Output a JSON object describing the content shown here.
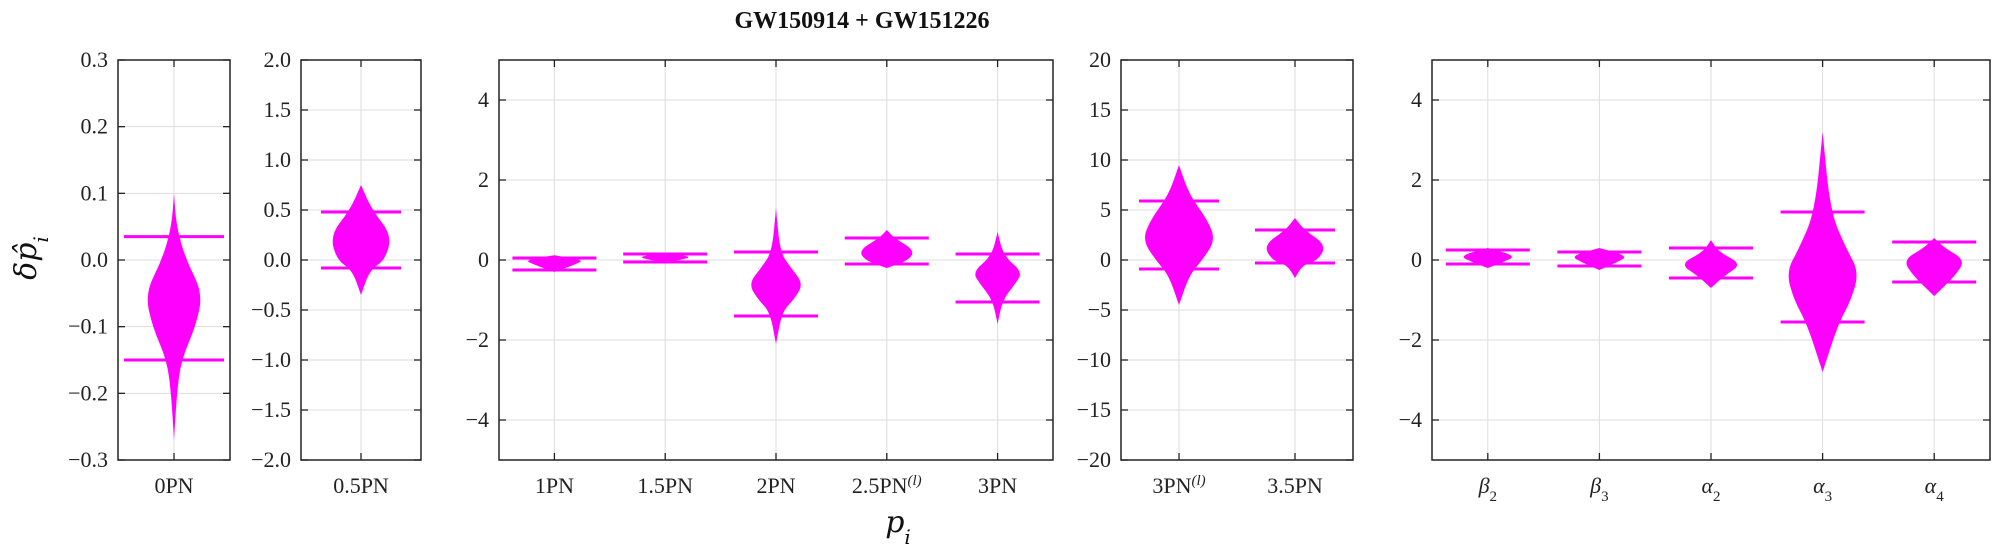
{
  "figure": {
    "title": "GW150914 + GW151226",
    "ylabel": "δp̂",
    "ylabel_sub": "i",
    "xlabel": "p",
    "xlabel_sub": "i",
    "violin_color": "#ff00ff"
  },
  "chart_data": [
    {
      "type": "violin",
      "ylim": [
        -0.3,
        0.3
      ],
      "yticks": [
        "0.3",
        "0.2",
        "0.1",
        "0.0",
        "−0.1",
        "−0.2",
        "−0.3"
      ],
      "ytick_values": [
        0.3,
        0.2,
        0.1,
        0.0,
        -0.1,
        -0.2,
        -0.3
      ],
      "y_axis_side": "left",
      "grid": true,
      "categories": [
        {
          "label": "0PN",
          "tails": [
            -0.27,
            0.14
          ],
          "shape": [
            [
              0.1,
              0.0
            ],
            [
              0.05,
              0.05
            ],
            [
              0.0,
              0.25
            ],
            [
              -0.05,
              0.6
            ],
            [
              -0.1,
              0.45
            ],
            [
              -0.15,
              0.15
            ],
            [
              -0.2,
              0.06
            ],
            [
              -0.27,
              0.0
            ]
          ],
          "lower": -0.15,
          "upper": 0.035
        }
      ]
    },
    {
      "type": "violin",
      "ylim": [
        -2.0,
        2.0
      ],
      "yticks": [
        "2.0",
        "1.5",
        "1.0",
        "0.5",
        "0.0",
        "−0.5",
        "−1.0",
        "−1.5",
        "−2.0"
      ],
      "ytick_values": [
        2.0,
        1.5,
        1.0,
        0.5,
        0.0,
        -0.5,
        -1.0,
        -1.5,
        -2.0
      ],
      "y_axis_side": "left",
      "grid": true,
      "categories": [
        {
          "label": "0.5PN",
          "shape": [
            [
              0.75,
              0.0
            ],
            [
              0.5,
              0.25
            ],
            [
              0.25,
              0.7
            ],
            [
              0.0,
              0.55
            ],
            [
              -0.1,
              0.2
            ],
            [
              -0.35,
              0.0
            ]
          ],
          "lower": -0.08,
          "upper": 0.48
        }
      ]
    },
    {
      "type": "violin",
      "ylim": [
        -5,
        5
      ],
      "yticks": [
        "4",
        "2",
        "0",
        "−2",
        "−4"
      ],
      "ytick_values": [
        4,
        2,
        0,
        -2,
        -4
      ],
      "y_axis_side": "left",
      "grid": true,
      "categories": [
        {
          "label": "1PN",
          "shape": [
            [
              0.12,
              0.0
            ],
            [
              0.0,
              0.6
            ],
            [
              -0.12,
              0.4
            ],
            [
              -0.3,
              0.0
            ]
          ],
          "lower": -0.25,
          "upper": 0.05
        },
        {
          "label": "1.5PN",
          "shape": [
            [
              0.18,
              0.0
            ],
            [
              0.08,
              0.55
            ],
            [
              0.0,
              0.3
            ],
            [
              -0.05,
              0.0
            ]
          ],
          "lower": -0.05,
          "upper": 0.15
        },
        {
          "label": "2PN",
          "shape": [
            [
              1.3,
              0.0
            ],
            [
              0.2,
              0.08
            ],
            [
              -0.2,
              0.3
            ],
            [
              -0.6,
              0.55
            ],
            [
              -1.0,
              0.35
            ],
            [
              -1.3,
              0.12
            ],
            [
              -2.1,
              0.0
            ]
          ],
          "lower": -1.4,
          "upper": 0.2
        },
        {
          "label": "2.5PN",
          "label_sup": "(l)",
          "shape": [
            [
              0.75,
              0.0
            ],
            [
              0.55,
              0.15
            ],
            [
              0.25,
              0.55
            ],
            [
              0.0,
              0.45
            ],
            [
              -0.2,
              0.0
            ]
          ],
          "lower": -0.1,
          "upper": 0.55
        },
        {
          "label": "3PN",
          "shape": [
            [
              0.7,
              0.0
            ],
            [
              0.1,
              0.12
            ],
            [
              -0.3,
              0.5
            ],
            [
              -0.6,
              0.35
            ],
            [
              -1.0,
              0.1
            ],
            [
              -1.6,
              0.0
            ]
          ],
          "lower": -1.05,
          "upper": 0.15
        }
      ]
    },
    {
      "type": "violin",
      "ylim": [
        -20,
        20
      ],
      "yticks": [
        "20",
        "15",
        "10",
        "5",
        "0",
        "−5",
        "−10",
        "−15",
        "−20"
      ],
      "ytick_values": [
        20,
        15,
        10,
        5,
        0,
        -5,
        -10,
        -15,
        -20
      ],
      "y_axis_side": "left",
      "grid": true,
      "categories": [
        {
          "label": "3PN",
          "label_sup": "(l)",
          "shape": [
            [
              9.5,
              0.0
            ],
            [
              6.5,
              0.2
            ],
            [
              4.0,
              0.55
            ],
            [
              2.0,
              0.7
            ],
            [
              0.0,
              0.45
            ],
            [
              -1.5,
              0.2
            ],
            [
              -4.5,
              0.0
            ]
          ],
          "lower": -0.9,
          "upper": 5.9
        },
        {
          "label": "3.5PN",
          "shape": [
            [
              4.2,
              0.0
            ],
            [
              3.0,
              0.18
            ],
            [
              1.5,
              0.6
            ],
            [
              0.0,
              0.45
            ],
            [
              -0.5,
              0.15
            ],
            [
              -1.8,
              0.0
            ]
          ],
          "lower": -0.3,
          "upper": 3.0
        }
      ]
    },
    {
      "type": "violin",
      "ylim": [
        -5,
        5
      ],
      "yticks": [
        "4",
        "2",
        "0",
        "−2",
        "−4"
      ],
      "ytick_values": [
        4,
        2,
        0,
        -2,
        -4
      ],
      "y_axis_side": "left",
      "grid": true,
      "categories": [
        {
          "label": "β",
          "label_sub": "2",
          "shape": [
            [
              0.3,
              0.0
            ],
            [
              0.1,
              0.55
            ],
            [
              -0.05,
              0.3
            ],
            [
              -0.2,
              0.0
            ]
          ],
          "lower": -0.1,
          "upper": 0.25
        },
        {
          "label": "β",
          "label_sub": "3",
          "shape": [
            [
              0.3,
              0.0
            ],
            [
              0.1,
              0.55
            ],
            [
              -0.05,
              0.35
            ],
            [
              -0.25,
              0.0
            ]
          ],
          "lower": -0.15,
          "upper": 0.2
        },
        {
          "label": "α",
          "label_sub": "2",
          "shape": [
            [
              0.5,
              0.0
            ],
            [
              0.2,
              0.15
            ],
            [
              -0.1,
              0.6
            ],
            [
              -0.4,
              0.25
            ],
            [
              -0.7,
              0.0
            ]
          ],
          "lower": -0.45,
          "upper": 0.3
        },
        {
          "label": "α",
          "label_sub": "3",
          "shape": [
            [
              3.2,
              0.0
            ],
            [
              1.2,
              0.15
            ],
            [
              0.3,
              0.45
            ],
            [
              -0.3,
              0.7
            ],
            [
              -1.0,
              0.55
            ],
            [
              -1.6,
              0.3
            ],
            [
              -2.8,
              0.0
            ]
          ],
          "lower": -1.55,
          "upper": 1.2
        },
        {
          "label": "α",
          "label_sub": "4",
          "shape": [
            [
              0.55,
              0.0
            ],
            [
              0.3,
              0.2
            ],
            [
              0.0,
              0.6
            ],
            [
              -0.4,
              0.4
            ],
            [
              -0.9,
              0.0
            ]
          ],
          "lower": -0.55,
          "upper": 0.45
        }
      ]
    }
  ]
}
